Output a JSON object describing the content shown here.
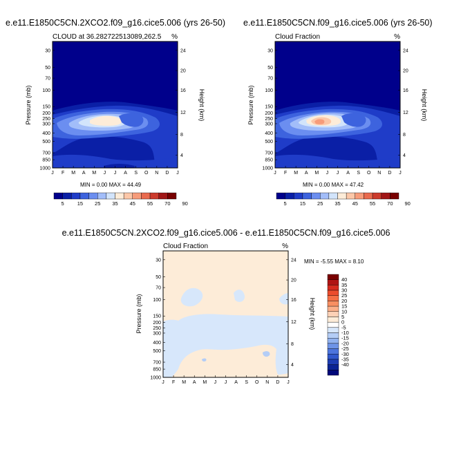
{
  "panels": [
    {
      "title": "e.e11.E1850C5CN.2XCO2.f09_g16.cice5.006 (yrs 26-50)",
      "subtitle": "CLOUD at 36.282722513089,262.5",
      "units": "%",
      "ylabel_left": "Pressure (mb)",
      "ylabel_right": "Height (km)",
      "minmax": "MIN =   0.00 MAX =  44.49"
    },
    {
      "title": "e.e11.E1850C5CN.f09_g16.cice5.006 (yrs 26-50)",
      "subtitle": "Cloud Fraction",
      "units": "%",
      "ylabel_left": "Pressure (mb)",
      "ylabel_right": "Height (km)",
      "minmax": "MIN =   0.00 MAX =  47.42"
    },
    {
      "title": "e.e11.E1850C5CN.2XCO2.f09_g16.cice5.006 - e.e11.E1850C5CN.f09_g16.cice5.006",
      "subtitle": "Cloud Fraction",
      "units": "%",
      "ylabel_left": "Pressure (mb)",
      "ylabel_right": "Height (km)",
      "minmax": "MIN =  -5.55 MAX =   8.10"
    }
  ],
  "chart_data": [
    {
      "type": "heatmap",
      "title": "e.e11.E1850C5CN.2XCO2.f09_g16.cice5.006 (yrs 26-50)",
      "subtitle": "CLOUD at 36.282722513089,262.5",
      "x_ticks": [
        "J",
        "F",
        "M",
        "A",
        "M",
        "J",
        "J",
        "A",
        "S",
        "O",
        "N",
        "D",
        "J"
      ],
      "y_ticks_pressure": [
        "30",
        "50",
        "70",
        "100",
        "150",
        "200",
        "250",
        "300",
        "400",
        "500",
        "700",
        "850",
        "1000"
      ],
      "y_ticks_height": [
        "24",
        "20",
        "16",
        "12",
        "8",
        "4"
      ],
      "min": 0.0,
      "max": 44.49,
      "colorbar_levels": [
        "5",
        "15",
        "25",
        "35",
        "45",
        "55",
        "70",
        "90"
      ],
      "colorbar_colors": [
        "#00008b",
        "#0a1fa6",
        "#1f3cc8",
        "#3d63de",
        "#6b8ef0",
        "#a2bdf9",
        "#d2e4fb",
        "#fdecd8",
        "#fcc7a8",
        "#f79c7a",
        "#e96a4e",
        "#cc3a2c",
        "#a11616",
        "#780000"
      ]
    },
    {
      "type": "heatmap",
      "title": "e.e11.E1850C5CN.f09_g16.cice5.006 (yrs 26-50)",
      "subtitle": "Cloud Fraction",
      "x_ticks": [
        "J",
        "F",
        "M",
        "A",
        "M",
        "J",
        "J",
        "A",
        "S",
        "O",
        "N",
        "D",
        "J"
      ],
      "y_ticks_pressure": [
        "30",
        "50",
        "70",
        "100",
        "150",
        "200",
        "250",
        "300",
        "400",
        "500",
        "700",
        "850",
        "1000"
      ],
      "y_ticks_height": [
        "24",
        "20",
        "16",
        "12",
        "8",
        "4"
      ],
      "min": 0.0,
      "max": 47.42,
      "colorbar_levels": [
        "5",
        "15",
        "25",
        "35",
        "45",
        "55",
        "70",
        "90"
      ],
      "colorbar_colors": [
        "#00008b",
        "#0a1fa6",
        "#1f3cc8",
        "#3d63de",
        "#6b8ef0",
        "#a2bdf9",
        "#d2e4fb",
        "#fdecd8",
        "#fcc7a8",
        "#f79c7a",
        "#e96a4e",
        "#cc3a2c",
        "#a11616",
        "#780000"
      ]
    },
    {
      "type": "heatmap",
      "title": "e.e11.E1850C5CN.2XCO2.f09_g16.cice5.006 - e.e11.E1850C5CN.f09_g16.cice5.006",
      "subtitle": "Cloud Fraction",
      "x_ticks": [
        "J",
        "F",
        "M",
        "A",
        "M",
        "J",
        "J",
        "A",
        "S",
        "O",
        "N",
        "D",
        "J"
      ],
      "y_ticks_pressure": [
        "30",
        "50",
        "70",
        "100",
        "150",
        "200",
        "250",
        "300",
        "400",
        "500",
        "700",
        "850",
        "1000"
      ],
      "y_ticks_height": [
        "24",
        "20",
        "16",
        "12",
        "8",
        "4"
      ],
      "min": -5.55,
      "max": 8.1,
      "colorbar_levels": [
        "40",
        "35",
        "30",
        "25",
        "20",
        "15",
        "10",
        "5",
        "0",
        "-5",
        "-10",
        "-15",
        "-20",
        "-25",
        "-30",
        "-35",
        "-40"
      ],
      "colorbar_colors": [
        "#7a0000",
        "#b01414",
        "#d52b1f",
        "#ec4c2d",
        "#f56f45",
        "#f88f62",
        "#fbb08a",
        "#fdd1b6",
        "#fdecd8",
        "#ffffff",
        "#d7e7fb",
        "#b4cdf6",
        "#91b2ef",
        "#6e94e7",
        "#4d75dd",
        "#3158cc",
        "#1d3db3",
        "#0b2494",
        "#00087a"
      ]
    }
  ]
}
